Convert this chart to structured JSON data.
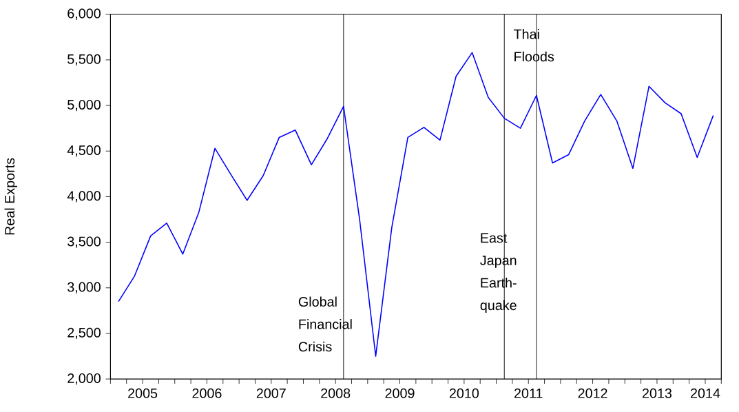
{
  "chart_data": {
    "type": "line",
    "ylabel": "Real Exports",
    "x": [
      2005.125,
      2005.375,
      2005.625,
      2005.875,
      2006.125,
      2006.375,
      2006.625,
      2006.875,
      2007.125,
      2007.375,
      2007.625,
      2007.875,
      2008.125,
      2008.375,
      2008.625,
      2008.875,
      2009.125,
      2009.375,
      2009.625,
      2009.875,
      2010.125,
      2010.375,
      2010.625,
      2010.875,
      2011.125,
      2011.375,
      2011.625,
      2011.875,
      2012.125,
      2012.375,
      2012.625,
      2012.875,
      2013.125,
      2013.375,
      2013.625,
      2013.875,
      2014.125,
      2014.375
    ],
    "values": [
      2850,
      3130,
      3570,
      3710,
      3370,
      3830,
      4530,
      4240,
      3960,
      4230,
      4650,
      4730,
      4350,
      4640,
      4990,
      3750,
      2250,
      3660,
      4650,
      4760,
      4620,
      5320,
      5580,
      5090,
      4860,
      4750,
      5110,
      4370,
      4460,
      4830,
      5120,
      4830,
      4310,
      5210,
      5030,
      4910,
      4430,
      4890
    ],
    "color": "#0000ff",
    "xlim": [
      2005,
      2014.5
    ],
    "ylim": [
      2000,
      6000
    ],
    "xticks": [
      {
        "value": 2005,
        "label": null
      },
      {
        "value": 2005.25,
        "label": null
      },
      {
        "value": 2005.5,
        "label": "2005"
      },
      {
        "value": 2005.75,
        "label": null
      },
      {
        "value": 2006,
        "label": null
      },
      {
        "value": 2006.25,
        "label": null
      },
      {
        "value": 2006.5,
        "label": "2006"
      },
      {
        "value": 2006.75,
        "label": null
      },
      {
        "value": 2007,
        "label": null
      },
      {
        "value": 2007.25,
        "label": null
      },
      {
        "value": 2007.5,
        "label": "2007"
      },
      {
        "value": 2007.75,
        "label": null
      },
      {
        "value": 2008,
        "label": null
      },
      {
        "value": 2008.25,
        "label": null
      },
      {
        "value": 2008.5,
        "label": "2008"
      },
      {
        "value": 2008.75,
        "label": null
      },
      {
        "value": 2009,
        "label": null
      },
      {
        "value": 2009.25,
        "label": null
      },
      {
        "value": 2009.5,
        "label": "2009"
      },
      {
        "value": 2009.75,
        "label": null
      },
      {
        "value": 2010,
        "label": null
      },
      {
        "value": 2010.25,
        "label": null
      },
      {
        "value": 2010.5,
        "label": "2010"
      },
      {
        "value": 2010.75,
        "label": null
      },
      {
        "value": 2011,
        "label": null
      },
      {
        "value": 2011.25,
        "label": null
      },
      {
        "value": 2011.5,
        "label": "2011"
      },
      {
        "value": 2011.75,
        "label": null
      },
      {
        "value": 2012,
        "label": null
      },
      {
        "value": 2012.25,
        "label": null
      },
      {
        "value": 2012.5,
        "label": "2012"
      },
      {
        "value": 2012.75,
        "label": null
      },
      {
        "value": 2013,
        "label": null
      },
      {
        "value": 2013.25,
        "label": null
      },
      {
        "value": 2013.5,
        "label": "2013"
      },
      {
        "value": 2013.75,
        "label": null
      },
      {
        "value": 2014,
        "label": null
      },
      {
        "value": 2014.25,
        "label": "2014"
      },
      {
        "value": 2014.5,
        "label": null
      }
    ],
    "yticks": [
      {
        "value": 2000,
        "label": "2,000"
      },
      {
        "value": 2500,
        "label": "2,500"
      },
      {
        "value": 3000,
        "label": "3,000"
      },
      {
        "value": 3500,
        "label": "3,500"
      },
      {
        "value": 4000,
        "label": "4,000"
      },
      {
        "value": 4500,
        "label": "4,500"
      },
      {
        "value": 5000,
        "label": "5,000"
      },
      {
        "value": 5500,
        "label": "5,500"
      },
      {
        "value": 6000,
        "label": "6,000"
      }
    ],
    "ref_lines": [
      {
        "axis": "x",
        "value": 2008.625,
        "label": "Global Financial Crisis",
        "color": "#000000"
      },
      {
        "axis": "x",
        "value": 2011.125,
        "label": "East Japan Earth-quake",
        "color": "#000000"
      },
      {
        "axis": "x",
        "value": 2011.625,
        "label": "Thai Floods",
        "color": "#000000"
      }
    ],
    "marker": "none",
    "line_style": "solid"
  }
}
